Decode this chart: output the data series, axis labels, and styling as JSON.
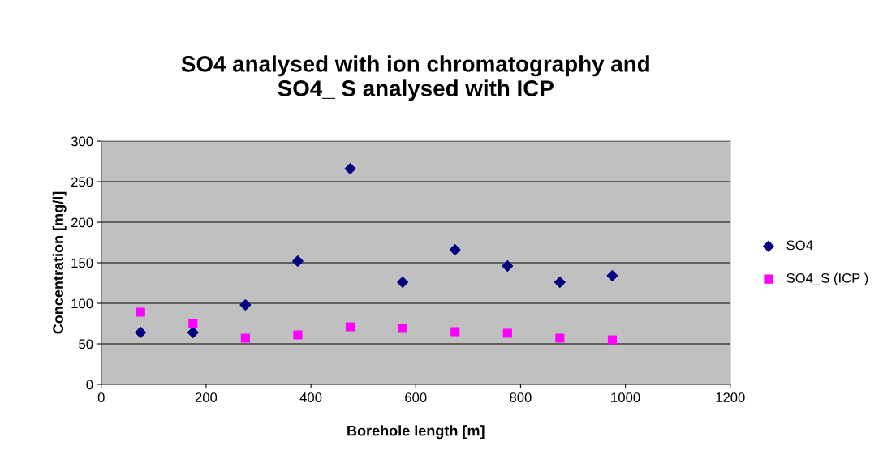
{
  "chart_data": {
    "type": "scatter",
    "title": "SO4 analysed with ion chromatography and\nSO4_ S analysed with ICP",
    "xlabel": "Borehole length [m]",
    "ylabel": "Concentration [mg/l]",
    "x": [
      75,
      175,
      275,
      375,
      475,
      575,
      675,
      775,
      875,
      975
    ],
    "series": [
      {
        "name": "SO4",
        "color": "#000080",
        "marker": "diamond",
        "values": [
          64,
          64,
          98,
          152,
          266,
          126,
          166,
          146,
          126,
          134
        ]
      },
      {
        "name": "SO4_S (ICP )",
        "color": "#ff00ff",
        "marker": "square",
        "values": [
          89,
          75,
          57,
          61,
          71,
          69,
          65,
          63,
          57,
          55
        ]
      }
    ],
    "xlim": [
      0,
      1200
    ],
    "xticks": [
      0,
      200,
      400,
      600,
      800,
      1000,
      1200
    ],
    "ylim": [
      0,
      300
    ],
    "yticks": [
      0,
      50,
      100,
      150,
      200,
      250,
      300
    ],
    "grid": "y",
    "legend": "right"
  }
}
